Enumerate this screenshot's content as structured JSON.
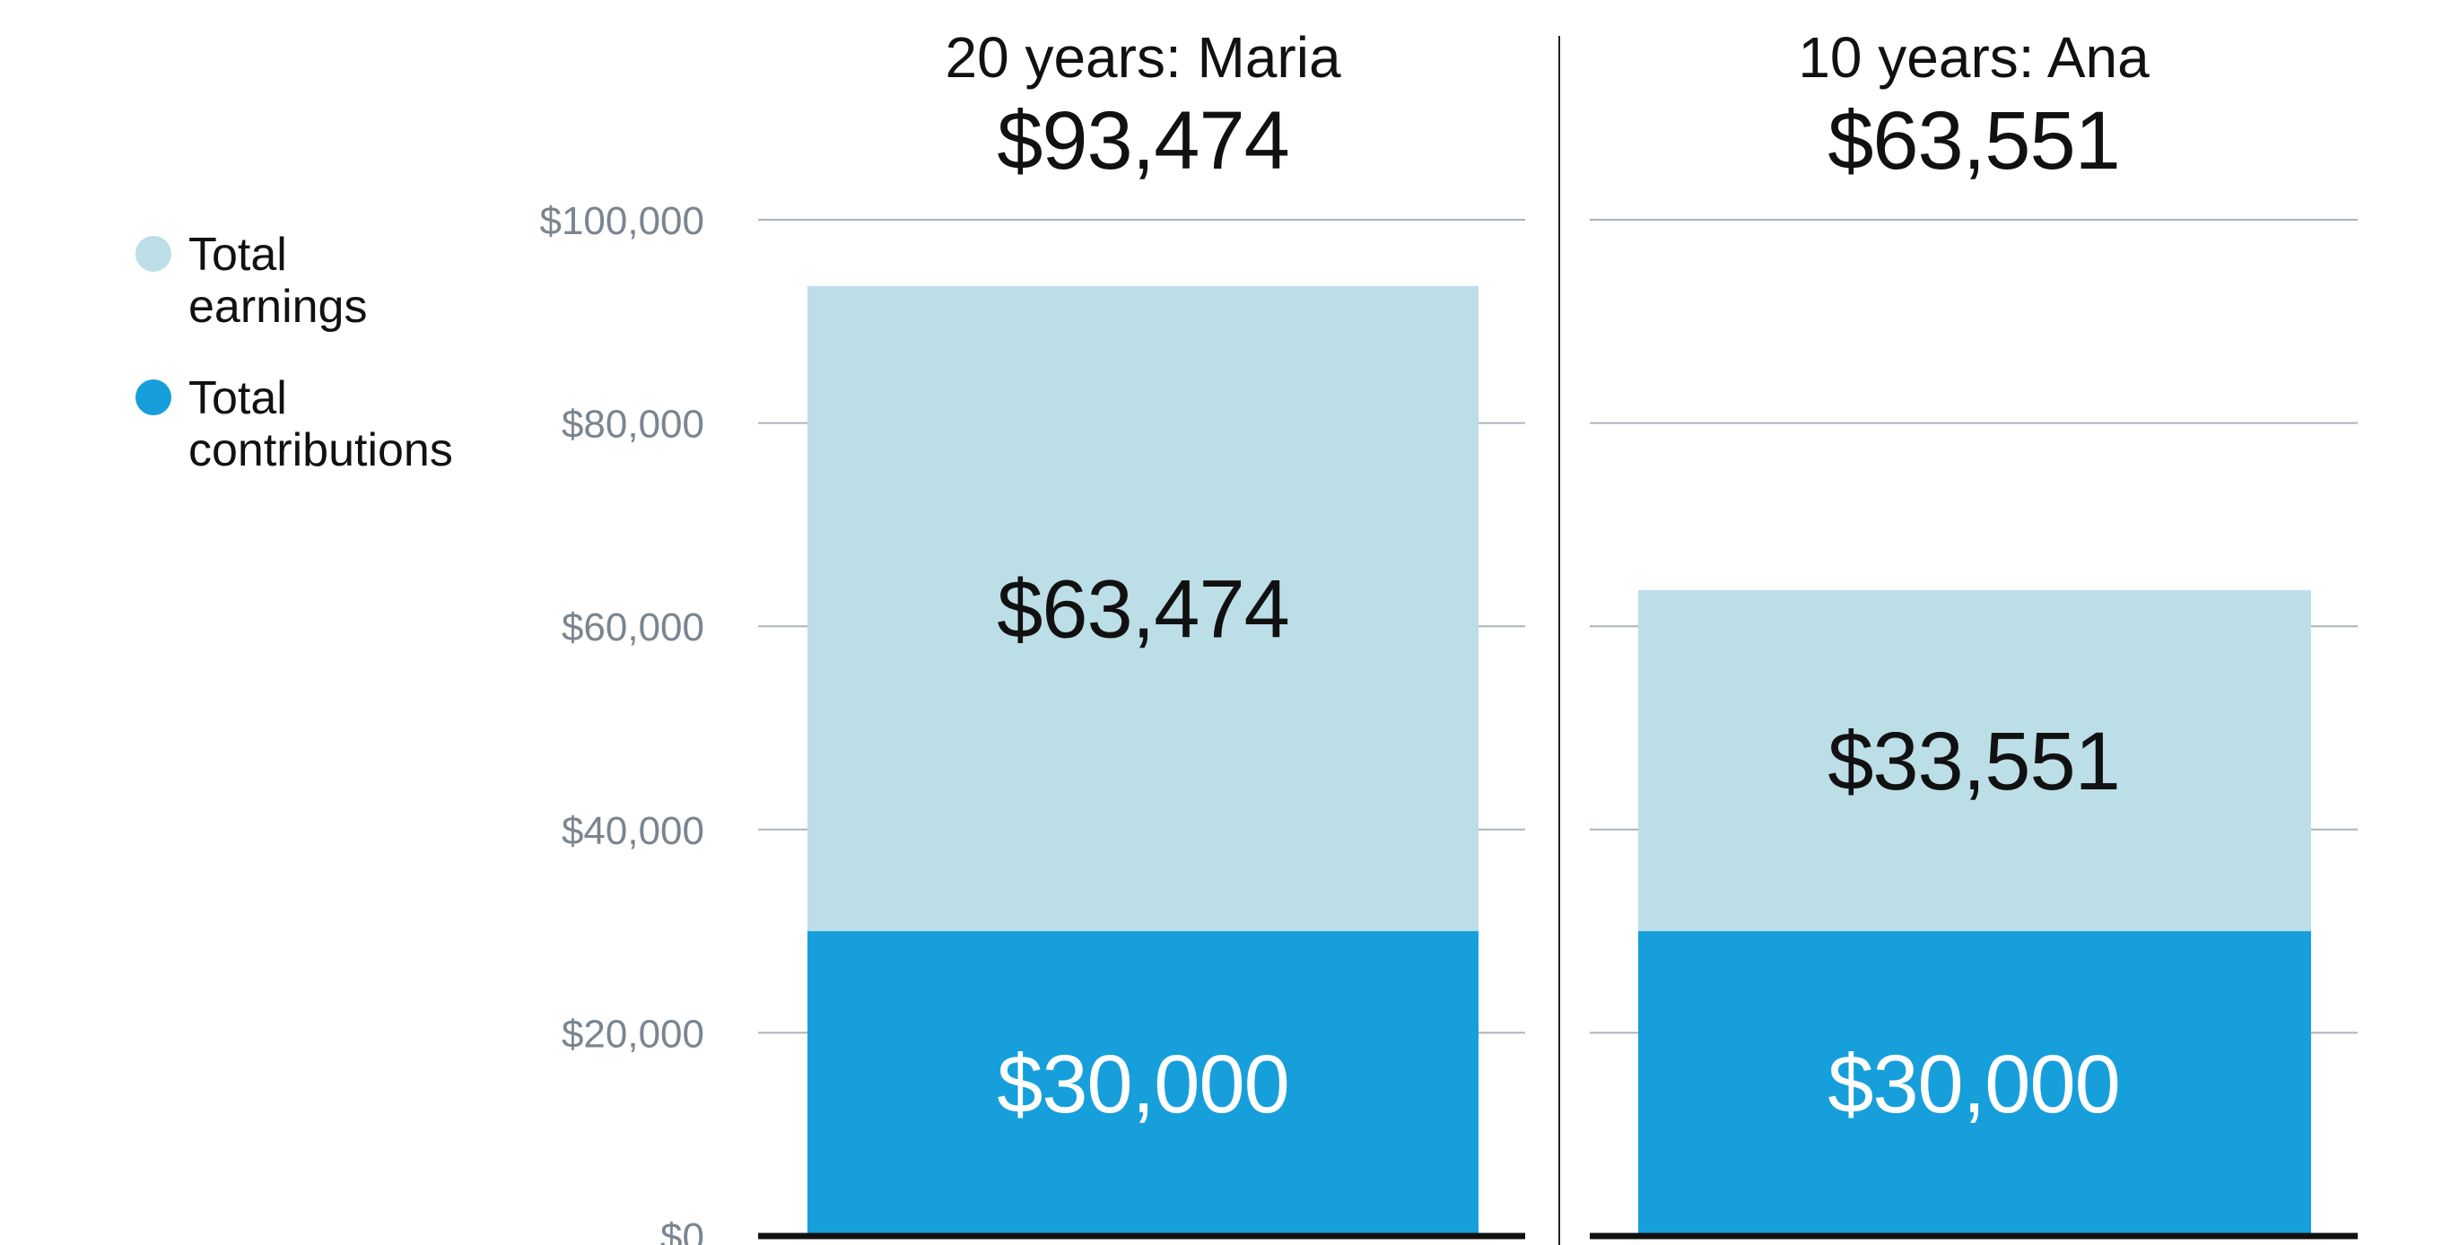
{
  "colors": {
    "earnings": "#bcdee6",
    "contributions": "#169fdb",
    "grid": "#aab4bc",
    "baseline": "#111111",
    "tick_text": "#7a8590",
    "divider": "#222222"
  },
  "legend": {
    "items": [
      {
        "key": "earnings",
        "line1": "Total",
        "line2": "earnings"
      },
      {
        "key": "contributions",
        "line1": "Total",
        "line2": "contributions"
      }
    ]
  },
  "chart_data": {
    "type": "bar",
    "stacked": true,
    "ylim": [
      0,
      100000
    ],
    "ytick_values": [
      0,
      20000,
      40000,
      60000,
      80000,
      100000
    ],
    "ytick_labels": [
      "$0",
      "$20,000",
      "$40,000",
      "$60,000",
      "$80,000",
      "$100,000"
    ],
    "grid": true,
    "legend_position": "left",
    "categories": [
      "20 years: Maria",
      "10 years: Ana"
    ],
    "totals": [
      93474,
      63551
    ],
    "total_labels": [
      "$93,474",
      "$63,551"
    ],
    "series": [
      {
        "name": "Total contributions",
        "key": "contributions",
        "values": [
          30000,
          30000
        ],
        "labels": [
          "$30,000",
          "$30,000"
        ]
      },
      {
        "name": "Total earnings",
        "key": "earnings",
        "values": [
          63474,
          33551
        ],
        "labels": [
          "$63,474",
          "$33,551"
        ]
      }
    ]
  }
}
